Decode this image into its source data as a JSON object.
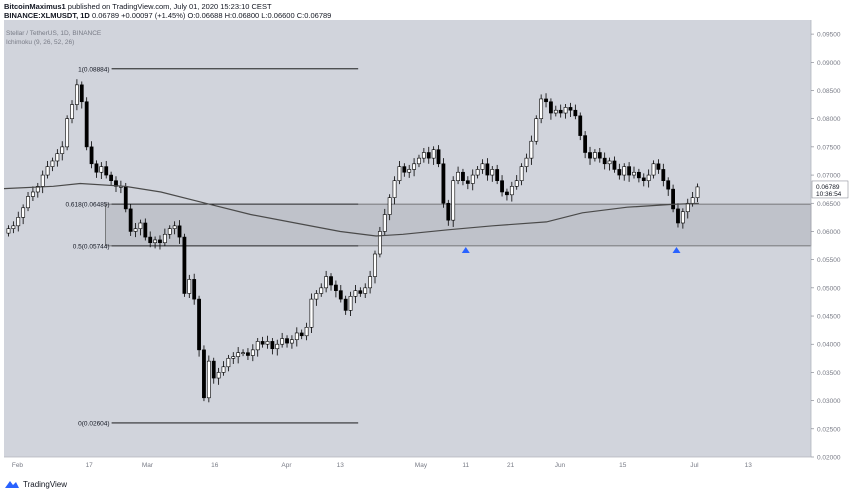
{
  "header": {
    "author": "BitcoinMaximus1",
    "published": "published on TradingView.com, July 01, 2020 15:23:10 CEST",
    "symbol": "BINANCE:XLMUSDT, 1D",
    "last_price": "0.06789",
    "change": "+0.00097 (+1.45%)",
    "ohlc": "O:0.06688 H:0.06800 L:0.06600 C:0.06789"
  },
  "legend": {
    "series": "Stellar / TetherUS, 1D, BINANCE",
    "indicator": "Ichimoku (9, 26, 52, 26)"
  },
  "footer": {
    "brand": "TradingView"
  },
  "colors": {
    "plot_bg": "#d1d4dc",
    "zone": "#bfc2ca",
    "candle_up": "#ffffff",
    "candle_down": "#000000",
    "ma_line": "#4a4a4a",
    "arrow": "#2962ff"
  },
  "chart_data": {
    "type": "candlestick",
    "symbol": "XLM/USDT",
    "timeframe": "1D",
    "y_range": [
      0.02,
      0.0975
    ],
    "y_ticks": [
      "0.09500",
      "0.09000",
      "0.08500",
      "0.08000",
      "0.07500",
      "0.07000",
      "0.06500",
      "0.06000",
      "0.05500",
      "0.05000",
      "0.04500",
      "0.04000",
      "0.03500",
      "0.03000",
      "0.02500",
      "0.02000"
    ],
    "x_ticks": [
      {
        "label": "Feb",
        "day": 0
      },
      {
        "label": "17",
        "day": 16
      },
      {
        "label": "Mar",
        "day": 29
      },
      {
        "label": "16",
        "day": 44
      },
      {
        "label": "Apr",
        "day": 60
      },
      {
        "label": "13",
        "day": 72
      },
      {
        "label": "May",
        "day": 90
      },
      {
        "label": "11",
        "day": 100
      },
      {
        "label": "21",
        "day": 110
      },
      {
        "label": "Jun",
        "day": 121
      },
      {
        "label": "15",
        "day": 135
      },
      {
        "label": "Jul",
        "day": 151
      },
      {
        "label": "13",
        "day": 163
      }
    ],
    "x_range_days": [
      -3,
      177
    ],
    "price_label": "0.06789",
    "countdown_label": "10:36:54",
    "fibonacci": [
      {
        "label": "1(0.08884)",
        "value": 0.08884
      },
      {
        "label": "0.618(0.06485)",
        "value": 0.06485
      },
      {
        "label": "0.5(0.05744)",
        "value": 0.05744
      },
      {
        "label": "0(0.02604)",
        "value": 0.02604
      }
    ],
    "fib_day_range": [
      21,
      76
    ],
    "support_zone": {
      "low": 0.05744,
      "high": 0.06485
    },
    "arrows": [
      {
        "day": 100,
        "value": 0.0567
      },
      {
        "day": 147,
        "value": 0.0567
      }
    ],
    "ma_line": [
      [
        -3,
        0.0676
      ],
      [
        8,
        0.068
      ],
      [
        14,
        0.0685
      ],
      [
        24,
        0.068
      ],
      [
        32,
        0.067
      ],
      [
        42,
        0.065
      ],
      [
        52,
        0.063
      ],
      [
        62,
        0.0615
      ],
      [
        72,
        0.06
      ],
      [
        80,
        0.0592
      ],
      [
        86,
        0.0595
      ],
      [
        96,
        0.0603
      ],
      [
        106,
        0.061
      ],
      [
        118,
        0.0617
      ],
      [
        126,
        0.0633
      ],
      [
        136,
        0.0643
      ],
      [
        146,
        0.0648
      ],
      [
        152,
        0.065
      ]
    ],
    "closes": [
      0.0605,
      0.061,
      0.0625,
      0.0642,
      0.0662,
      0.067,
      0.068,
      0.07,
      0.0715,
      0.0725,
      0.0738,
      0.075,
      0.08,
      0.0825,
      0.086,
      0.083,
      0.075,
      0.072,
      0.0705,
      0.0715,
      0.07,
      0.069,
      0.068,
      0.068,
      0.064,
      0.06,
      0.0605,
      0.0615,
      0.059,
      0.058,
      0.0585,
      0.058,
      0.0595,
      0.0605,
      0.061,
      0.059,
      0.049,
      0.0515,
      0.048,
      0.039,
      0.0305,
      0.037,
      0.034,
      0.035,
      0.036,
      0.0375,
      0.0378,
      0.0385,
      0.0385,
      0.038,
      0.039,
      0.0405,
      0.04,
      0.0405,
      0.0392,
      0.04,
      0.041,
      0.0402,
      0.0408,
      0.042,
      0.0415,
      0.043,
      0.048,
      0.049,
      0.05,
      0.052,
      0.0505,
      0.0495,
      0.048,
      0.046,
      0.0485,
      0.0495,
      0.049,
      0.05,
      0.052,
      0.056,
      0.06,
      0.063,
      0.066,
      0.069,
      0.0715,
      0.0705,
      0.071,
      0.072,
      0.073,
      0.074,
      0.073,
      0.0745,
      0.072,
      0.065,
      0.062,
      0.069,
      0.0705,
      0.069,
      0.0685,
      0.07,
      0.071,
      0.072,
      0.07,
      0.071,
      0.069,
      0.067,
      0.0665,
      0.068,
      0.069,
      0.0715,
      0.073,
      0.076,
      0.08,
      0.0835,
      0.083,
      0.081,
      0.0815,
      0.081,
      0.082,
      0.0815,
      0.0805,
      0.077,
      0.074,
      0.073,
      0.074,
      0.073,
      0.072,
      0.0725,
      0.071,
      0.07,
      0.0715,
      0.07,
      0.0705,
      0.0695,
      0.069,
      0.07,
      0.072,
      0.071,
      0.069,
      0.0675,
      0.064,
      0.0615,
      0.0635,
      0.065,
      0.066,
      0.0679
    ],
    "start_day": -2,
    "candle_step_days": 1.09
  }
}
